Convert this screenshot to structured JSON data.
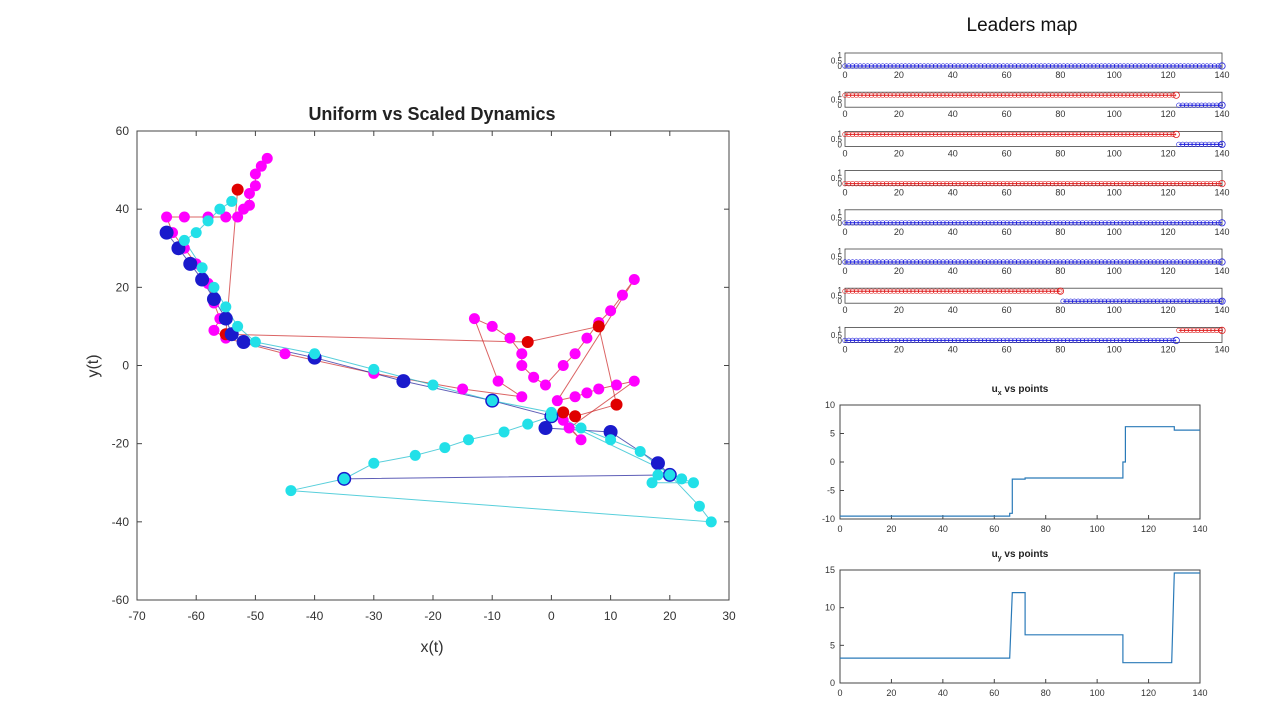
{
  "main_plot": {
    "title": "Uniform vs Scaled Dynamics",
    "xlabel": "x(t)",
    "ylabel": "y(t)",
    "xlim": [
      -70,
      30
    ],
    "ylim": [
      -60,
      60
    ],
    "xticks": [
      "-70",
      "-60",
      "-50",
      "-40",
      "-30",
      "-20",
      "-10",
      "0",
      "10",
      "20",
      "30"
    ],
    "yticks": [
      "60",
      "40",
      "20",
      "0",
      "-20",
      "-40",
      "-60"
    ]
  },
  "leaders_map": {
    "title": "Leaders map",
    "ytick_labels": [
      "1",
      "0.5",
      "0"
    ],
    "xticks": [
      "0",
      "20",
      "40",
      "60",
      "80",
      "100",
      "120",
      "140"
    ]
  },
  "ux_plot": {
    "title_main": "u",
    "title_sub": "x",
    "title_rest": " vs points",
    "yticks": [
      "10",
      "5",
      "0",
      "-5",
      "-10"
    ],
    "xticks": [
      "0",
      "20",
      "40",
      "60",
      "80",
      "100",
      "120",
      "140"
    ]
  },
  "uy_plot": {
    "title_main": "u",
    "title_sub": "y",
    "title_rest": " vs points",
    "yticks": [
      "15",
      "10",
      "5",
      "0"
    ],
    "xticks": [
      "0",
      "20",
      "40",
      "60",
      "80",
      "100",
      "120",
      "140"
    ]
  },
  "chart_data": [
    {
      "type": "scatter",
      "title": "Uniform vs Scaled Dynamics",
      "xlabel": "x(t)",
      "ylabel": "y(t)",
      "xlim": [
        -70,
        30
      ],
      "ylim": [
        -60,
        60
      ],
      "colors": {
        "magenta": "#ff00ff",
        "red": "#e00000",
        "blue": "#1a1acc",
        "cyan": "#22e0e8"
      },
      "series": [
        {
          "color": "magenta",
          "points": [
            [
              -48,
              53
            ],
            [
              -49,
              51
            ],
            [
              -50,
              49
            ],
            [
              -50,
              46
            ],
            [
              -51,
              44
            ],
            [
              -51,
              41
            ],
            [
              -52,
              40
            ],
            [
              -53,
              38
            ],
            [
              -55,
              38
            ],
            [
              -58,
              38
            ],
            [
              -62,
              38
            ],
            [
              -65,
              38
            ],
            [
              -64,
              34
            ],
            [
              -62,
              30
            ],
            [
              -60,
              26
            ],
            [
              -58,
              21
            ],
            [
              -57,
              16
            ],
            [
              -56,
              12
            ],
            [
              -57,
              9
            ],
            [
              -55,
              7
            ],
            [
              -45,
              3
            ],
            [
              -30,
              -2
            ],
            [
              -15,
              -6
            ],
            [
              -5,
              -8
            ],
            [
              -9,
              -4
            ],
            [
              -13,
              12
            ],
            [
              -10,
              10
            ],
            [
              -7,
              7
            ],
            [
              -5,
              3
            ],
            [
              -5,
              0
            ],
            [
              -3,
              -3
            ],
            [
              -1,
              -5
            ],
            [
              2,
              0
            ],
            [
              4,
              3
            ],
            [
              6,
              7
            ],
            [
              8,
              11
            ],
            [
              10,
              14
            ],
            [
              12,
              18
            ],
            [
              14,
              22
            ],
            [
              1,
              -9
            ],
            [
              4,
              -8
            ],
            [
              6,
              -7
            ],
            [
              8,
              -6
            ],
            [
              11,
              -5
            ],
            [
              14,
              -4
            ],
            [
              3,
              -16
            ],
            [
              5,
              -19
            ],
            [
              2,
              -14
            ]
          ]
        },
        {
          "color": "red",
          "points": [
            [
              -53,
              45
            ],
            [
              -55,
              8
            ],
            [
              -4,
              6
            ],
            [
              8,
              10
            ],
            [
              11,
              -10
            ],
            [
              4,
              -13
            ],
            [
              2,
              -12
            ]
          ]
        },
        {
          "color": "blue",
          "points": [
            [
              -65,
              34
            ],
            [
              -63,
              30
            ],
            [
              -61,
              26
            ],
            [
              -59,
              22
            ],
            [
              -57,
              17
            ],
            [
              -55,
              12
            ],
            [
              -54,
              8
            ],
            [
              -52,
              6
            ],
            [
              -40,
              2
            ],
            [
              -25,
              -4
            ],
            [
              -10,
              -9
            ],
            [
              0,
              -13
            ],
            [
              -1,
              -16
            ],
            [
              10,
              -17
            ],
            [
              18,
              -25
            ],
            [
              20,
              -28
            ],
            [
              -35,
              -29
            ]
          ]
        },
        {
          "color": "cyan",
          "points": [
            [
              -54,
              42
            ],
            [
              -56,
              40
            ],
            [
              -58,
              37
            ],
            [
              -60,
              34
            ],
            [
              -62,
              32
            ],
            [
              -59,
              25
            ],
            [
              -57,
              20
            ],
            [
              -55,
              15
            ],
            [
              -53,
              10
            ],
            [
              -50,
              6
            ],
            [
              -40,
              3
            ],
            [
              -30,
              -1
            ],
            [
              -20,
              -5
            ],
            [
              -10,
              -9
            ],
            [
              0,
              -12
            ],
            [
              5,
              -16
            ],
            [
              10,
              -19
            ],
            [
              15,
              -22
            ],
            [
              20,
              -28
            ],
            [
              25,
              -36
            ],
            [
              27,
              -40
            ],
            [
              -44,
              -32
            ],
            [
              -35,
              -29
            ],
            [
              -30,
              -25
            ],
            [
              -23,
              -23
            ],
            [
              -18,
              -21
            ],
            [
              -14,
              -19
            ],
            [
              -8,
              -17
            ],
            [
              -4,
              -15
            ],
            [
              0,
              -13
            ],
            [
              22,
              -29
            ],
            [
              24,
              -30
            ],
            [
              17,
              -30
            ],
            [
              18,
              -28
            ]
          ]
        }
      ]
    },
    {
      "type": "scatter",
      "title": "Leaders map",
      "xlim": [
        0,
        140
      ],
      "ylim": [
        0,
        1
      ],
      "rows": [
        {
          "segments": [
            {
              "color": "blue",
              "level": 0,
              "from": 0,
              "to": 140
            }
          ]
        },
        {
          "segments": [
            {
              "color": "red",
              "level": 1,
              "from": 0,
              "to": 123
            },
            {
              "color": "blue",
              "level": 0,
              "from": 124,
              "to": 140
            }
          ]
        },
        {
          "segments": [
            {
              "color": "red",
              "level": 1,
              "from": 0,
              "to": 123
            },
            {
              "color": "blue",
              "level": 0,
              "from": 124,
              "to": 140
            }
          ]
        },
        {
          "segments": [
            {
              "color": "red",
              "level": 0,
              "from": 0,
              "to": 140
            }
          ]
        },
        {
          "segments": [
            {
              "color": "blue",
              "level": 0,
              "from": 0,
              "to": 140
            }
          ]
        },
        {
          "segments": [
            {
              "color": "blue",
              "level": 0,
              "from": 0,
              "to": 140
            }
          ]
        },
        {
          "segments": [
            {
              "color": "red",
              "level": 1,
              "from": 0,
              "to": 80
            },
            {
              "color": "blue",
              "level": 0,
              "from": 81,
              "to": 140
            }
          ]
        },
        {
          "segments": [
            {
              "color": "blue",
              "level": 0,
              "from": 0,
              "to": 123
            },
            {
              "color": "red",
              "level": 1,
              "from": 124,
              "to": 140
            }
          ]
        }
      ]
    },
    {
      "type": "line",
      "title": "u_x vs points",
      "xlim": [
        0,
        140
      ],
      "ylim": [
        -10,
        10
      ],
      "x": [
        0,
        66,
        66,
        67,
        67,
        72,
        72,
        110,
        110,
        111,
        111,
        130,
        130,
        140
      ],
      "y": [
        -9.5,
        -9.5,
        -9.0,
        -9.0,
        -3.0,
        -3.0,
        -2.8,
        -2.8,
        0,
        0,
        6.2,
        6.2,
        5.6,
        5.6
      ]
    },
    {
      "type": "line",
      "title": "u_y vs points",
      "xlim": [
        0,
        140
      ],
      "ylim": [
        0,
        15
      ],
      "x": [
        0,
        66,
        67,
        72,
        72,
        110,
        110,
        129,
        130,
        140
      ],
      "y": [
        3.3,
        3.3,
        12,
        12,
        6.4,
        6.4,
        2.7,
        2.7,
        14.6,
        14.6
      ]
    }
  ]
}
